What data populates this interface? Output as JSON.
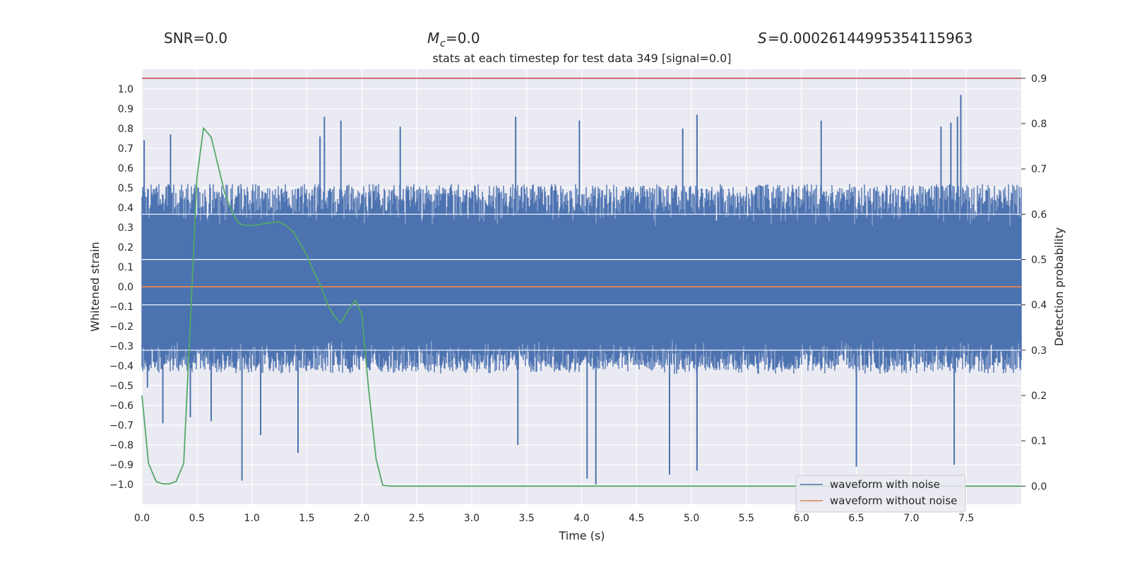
{
  "chart_data": {
    "type": "line",
    "title": "stats at each timestep for test data 349 [signal=0.0]",
    "header_stats": {
      "snr": "SNR=0.0",
      "mc": "=0.0",
      "mc_symbol": "M",
      "mc_subscript": "c",
      "s": "=0.00026144995354115963",
      "s_symbol": "S"
    },
    "xlabel": "Time (s)",
    "ylabel_left": "Whitened strain",
    "ylabel_right": "Detection probability",
    "xlim": [
      0.0,
      8.0
    ],
    "ylim_left": [
      -1.1,
      1.1
    ],
    "ylim_right": [
      -0.04,
      0.92
    ],
    "x_ticks": [
      "0.0",
      "0.5",
      "1.0",
      "1.5",
      "2.0",
      "2.5",
      "3.0",
      "3.5",
      "4.0",
      "4.5",
      "5.0",
      "5.5",
      "6.0",
      "6.5",
      "7.0",
      "7.5"
    ],
    "y_left_ticks": [
      "1.0",
      "0.9",
      "0.8",
      "0.7",
      "0.6",
      "0.5",
      "0.4",
      "0.3",
      "0.2",
      "0.1",
      "0.0",
      "-0.1",
      "-0.2",
      "-0.3",
      "-0.4",
      "-0.5",
      "-0.6",
      "-0.7",
      "-0.8",
      "-0.9",
      "-1.0"
    ],
    "y_right_ticks": [
      "0.9",
      "0.8",
      "0.7",
      "0.6",
      "0.5",
      "0.4",
      "0.3",
      "0.2",
      "0.1",
      "0.0"
    ],
    "threshold": {
      "value": 0.9,
      "axis": "right",
      "color": "#c44e52"
    },
    "series": [
      {
        "name": "waveform with noise",
        "axis": "left",
        "color": "#4c72b0",
        "note": "dense noise trace, typical range about -0.4 to 0.5",
        "typical_range": [
          -0.42,
          0.52
        ],
        "spikes": [
          {
            "x": 0.02,
            "y": 0.74
          },
          {
            "x": 0.05,
            "y": -0.51
          },
          {
            "x": 0.19,
            "y": -0.69
          },
          {
            "x": 0.26,
            "y": 0.77
          },
          {
            "x": 0.44,
            "y": -0.66
          },
          {
            "x": 0.63,
            "y": -0.68
          },
          {
            "x": 0.91,
            "y": -0.98
          },
          {
            "x": 1.08,
            "y": -0.75
          },
          {
            "x": 1.42,
            "y": -0.84
          },
          {
            "x": 1.62,
            "y": 0.76
          },
          {
            "x": 1.66,
            "y": 0.86
          },
          {
            "x": 1.81,
            "y": 0.84
          },
          {
            "x": 2.35,
            "y": 0.81
          },
          {
            "x": 3.4,
            "y": 0.86
          },
          {
            "x": 3.42,
            "y": -0.8
          },
          {
            "x": 3.98,
            "y": 0.84
          },
          {
            "x": 4.05,
            "y": -0.97
          },
          {
            "x": 4.13,
            "y": -1.0
          },
          {
            "x": 4.8,
            "y": -0.95
          },
          {
            "x": 4.92,
            "y": 0.8
          },
          {
            "x": 5.05,
            "y": 0.87
          },
          {
            "x": 5.05,
            "y": -0.93
          },
          {
            "x": 5.82,
            "y": 0.1
          },
          {
            "x": 6.18,
            "y": 0.84
          },
          {
            "x": 6.5,
            "y": -0.91
          },
          {
            "x": 7.27,
            "y": 0.81
          },
          {
            "x": 7.36,
            "y": 0.83
          },
          {
            "x": 7.39,
            "y": -0.9
          },
          {
            "x": 7.42,
            "y": 0.86
          },
          {
            "x": 7.45,
            "y": 0.97
          }
        ]
      },
      {
        "name": "waveform without noise",
        "axis": "left",
        "color": "#dd8452",
        "x": [
          0.0,
          8.0
        ],
        "y": [
          0.0,
          0.0
        ]
      },
      {
        "name": "detection probability",
        "axis": "right",
        "color": "#55a868",
        "x": [
          0.0,
          0.06,
          0.13,
          0.19,
          0.25,
          0.31,
          0.38,
          0.44,
          0.5,
          0.56,
          0.63,
          0.69,
          0.75,
          0.81,
          0.88,
          0.94,
          1.0,
          1.06,
          1.13,
          1.19,
          1.25,
          1.31,
          1.38,
          1.44,
          1.5,
          1.56,
          1.63,
          1.69,
          1.75,
          1.81,
          1.88,
          1.94,
          2.0,
          2.06,
          2.13,
          2.19,
          2.25,
          2.5,
          3.0,
          4.0,
          5.0,
          6.0,
          7.0,
          8.0
        ],
        "y": [
          0.2,
          0.05,
          0.01,
          0.005,
          0.005,
          0.01,
          0.05,
          0.36,
          0.68,
          0.79,
          0.77,
          0.71,
          0.65,
          0.61,
          0.58,
          0.575,
          0.575,
          0.577,
          0.58,
          0.582,
          0.583,
          0.575,
          0.56,
          0.535,
          0.51,
          0.475,
          0.44,
          0.4,
          0.375,
          0.36,
          0.39,
          0.41,
          0.38,
          0.22,
          0.06,
          0.002,
          0.0,
          0.0,
          0.0,
          0.0,
          0.0,
          0.0,
          0.0,
          0.0
        ]
      }
    ],
    "legend": {
      "position": "lower-right",
      "entries": [
        "waveform with noise",
        "waveform without noise"
      ]
    }
  }
}
